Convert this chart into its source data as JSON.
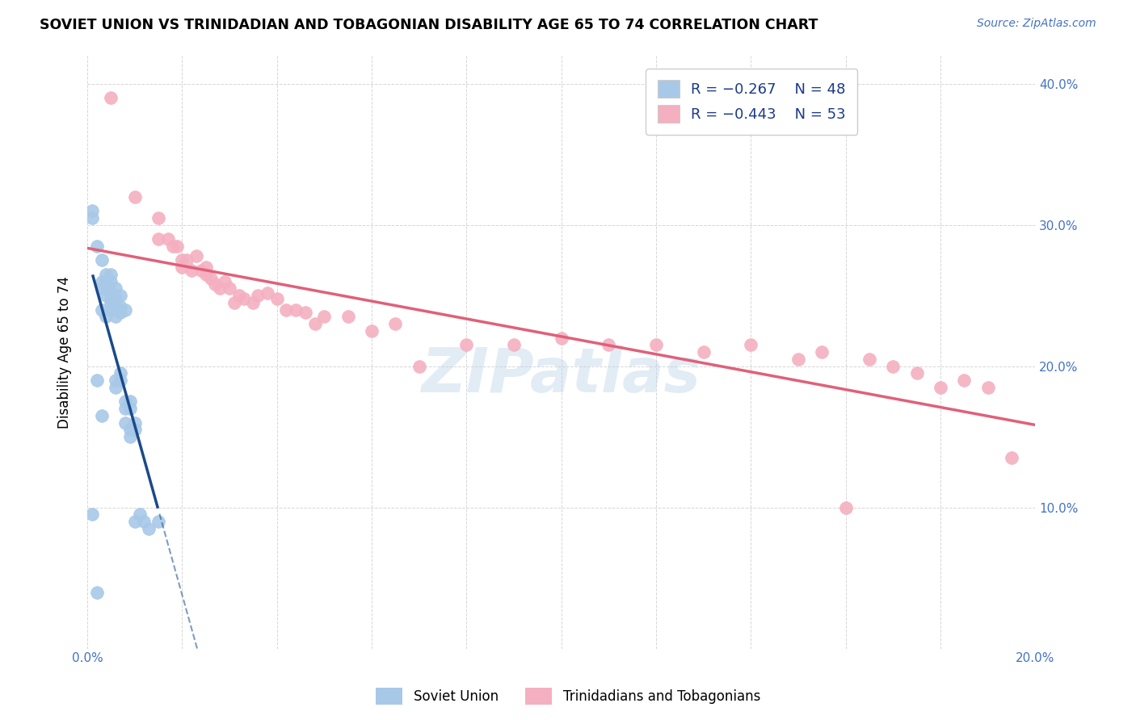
{
  "title": "SOVIET UNION VS TRINIDADIAN AND TOBAGONIAN DISABILITY AGE 65 TO 74 CORRELATION CHART",
  "source": "Source: ZipAtlas.com",
  "ylabel": "Disability Age 65 to 74",
  "xlim": [
    0.0,
    0.2
  ],
  "ylim": [
    0.0,
    0.42
  ],
  "xticks": [
    0.0,
    0.02,
    0.04,
    0.06,
    0.08,
    0.1,
    0.12,
    0.14,
    0.16,
    0.18,
    0.2
  ],
  "yticks": [
    0.0,
    0.1,
    0.2,
    0.3,
    0.4
  ],
  "legend_R1": "R = -0.267",
  "legend_N1": "N = 48",
  "legend_R2": "R = -0.443",
  "legend_N2": "N = 53",
  "blue_color": "#a8c8e8",
  "pink_color": "#f4b0c0",
  "blue_line_color": "#1a4a8a",
  "pink_line_color": "#e0607a",
  "watermark": "ZIPatlas",
  "soviet_x": [
    0.001,
    0.001,
    0.002,
    0.002,
    0.002,
    0.003,
    0.003,
    0.003,
    0.003,
    0.003,
    0.004,
    0.004,
    0.004,
    0.004,
    0.004,
    0.005,
    0.005,
    0.005,
    0.005,
    0.005,
    0.005,
    0.006,
    0.006,
    0.006,
    0.006,
    0.006,
    0.006,
    0.007,
    0.007,
    0.007,
    0.007,
    0.007,
    0.008,
    0.008,
    0.008,
    0.008,
    0.009,
    0.009,
    0.009,
    0.009,
    0.01,
    0.01,
    0.01,
    0.011,
    0.012,
    0.013,
    0.015,
    0.001
  ],
  "soviet_y": [
    0.31,
    0.305,
    0.285,
    0.19,
    0.04,
    0.275,
    0.26,
    0.255,
    0.24,
    0.165,
    0.265,
    0.26,
    0.255,
    0.25,
    0.235,
    0.265,
    0.26,
    0.252,
    0.248,
    0.245,
    0.24,
    0.255,
    0.248,
    0.242,
    0.235,
    0.19,
    0.185,
    0.25,
    0.242,
    0.238,
    0.195,
    0.19,
    0.24,
    0.175,
    0.17,
    0.16,
    0.175,
    0.17,
    0.155,
    0.15,
    0.16,
    0.155,
    0.09,
    0.095,
    0.09,
    0.085,
    0.09,
    0.095
  ],
  "trinidadian_x": [
    0.005,
    0.01,
    0.015,
    0.015,
    0.017,
    0.018,
    0.019,
    0.02,
    0.02,
    0.021,
    0.022,
    0.023,
    0.024,
    0.025,
    0.025,
    0.026,
    0.027,
    0.028,
    0.029,
    0.03,
    0.031,
    0.032,
    0.033,
    0.035,
    0.036,
    0.038,
    0.04,
    0.042,
    0.044,
    0.046,
    0.048,
    0.05,
    0.055,
    0.06,
    0.065,
    0.07,
    0.08,
    0.09,
    0.1,
    0.11,
    0.12,
    0.13,
    0.14,
    0.15,
    0.155,
    0.16,
    0.165,
    0.17,
    0.175,
    0.18,
    0.185,
    0.19,
    0.195
  ],
  "trinidadian_y": [
    0.39,
    0.32,
    0.305,
    0.29,
    0.29,
    0.285,
    0.285,
    0.275,
    0.27,
    0.275,
    0.268,
    0.278,
    0.268,
    0.27,
    0.265,
    0.262,
    0.258,
    0.255,
    0.26,
    0.255,
    0.245,
    0.25,
    0.248,
    0.245,
    0.25,
    0.252,
    0.248,
    0.24,
    0.24,
    0.238,
    0.23,
    0.235,
    0.235,
    0.225,
    0.23,
    0.2,
    0.215,
    0.215,
    0.22,
    0.215,
    0.215,
    0.21,
    0.215,
    0.205,
    0.21,
    0.1,
    0.205,
    0.2,
    0.195,
    0.185,
    0.19,
    0.185,
    0.135
  ]
}
